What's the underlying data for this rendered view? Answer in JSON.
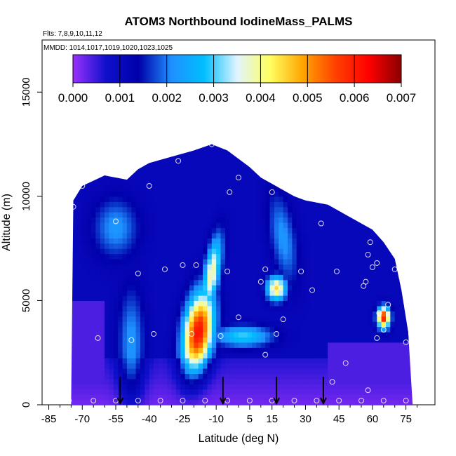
{
  "chart_data": {
    "type": "heatmap",
    "title": "ATOM3 Northbound IodineMass_PALMS",
    "flights_note": "Flts: 7,8,9,10,11,12",
    "dates_note": "MMDD: 1014,1017,1019,1020,1023,1025",
    "xlabel": "Latitude (deg N)",
    "ylabel": "Altitude (m)",
    "xlim": [
      -88,
      88
    ],
    "ylim": [
      0,
      17500
    ],
    "x_ticks": [
      -85,
      -70,
      -55,
      -40,
      -25,
      -10,
      5,
      15,
      30,
      45,
      60,
      75
    ],
    "x_tick_labels": [
      "-85",
      "-70",
      "-55",
      "-40",
      "-25",
      "-10",
      "5",
      "15",
      "30",
      "45",
      "60",
      "75"
    ],
    "y_ticks": [
      0,
      5000,
      10000,
      15000
    ],
    "y_tick_labels": [
      "0",
      "5000",
      "10000",
      "15000"
    ],
    "colorbar": {
      "min": 0.0,
      "max": 0.007,
      "ticks": [
        "0.000",
        "0.001",
        "0.002",
        "0.003",
        "0.004",
        "0.005",
        "0.006",
        "0.007"
      ],
      "colors": [
        "#9b30ff",
        "#1010cc",
        "#0000aa",
        "#1e90ff",
        "#00bfff",
        "#e0f4ff",
        "#ffff60",
        "#ffa500",
        "#ff4000",
        "#ff0000",
        "#8b0000"
      ]
    },
    "outline_top_altitude_by_latitude": [
      [
        -75,
        0
      ],
      [
        -74,
        9800
      ],
      [
        -70,
        10500
      ],
      [
        -60,
        11000
      ],
      [
        -50,
        10800
      ],
      [
        -45,
        11300
      ],
      [
        -40,
        11600
      ],
      [
        -30,
        11900
      ],
      [
        -20,
        12200
      ],
      [
        -12,
        12500
      ],
      [
        -5,
        12200
      ],
      [
        0,
        11800
      ],
      [
        5,
        11400
      ],
      [
        10,
        10900
      ],
      [
        15,
        10600
      ],
      [
        20,
        10300
      ],
      [
        25,
        10000
      ],
      [
        30,
        9800
      ],
      [
        40,
        9600
      ],
      [
        50,
        9000
      ],
      [
        55,
        8700
      ],
      [
        60,
        8400
      ],
      [
        65,
        7800
      ],
      [
        70,
        7000
      ],
      [
        73,
        5500
      ],
      [
        76,
        3500
      ],
      [
        78,
        0
      ]
    ],
    "features": [
      {
        "name": "tropical-plume",
        "lat_center": -18,
        "alt_center": 3500,
        "value": 0.0062
      },
      {
        "name": "plume-upper-tongue",
        "lat_center": -12,
        "alt_center": 6300,
        "value": 0.004
      },
      {
        "name": "subtropical-south-band",
        "lat_center": -48,
        "alt_center": 3000,
        "value": 0.0022
      },
      {
        "name": "south-upper-band",
        "lat_center": -55,
        "alt_center": 8500,
        "value": 0.0022
      },
      {
        "name": "nh-midlat-patch",
        "lat_center": 17,
        "alt_center": 5600,
        "value": 0.0045
      },
      {
        "name": "nh-upper-band",
        "lat_center": 20,
        "alt_center": 8000,
        "value": 0.0022
      },
      {
        "name": "arctic-hotspot",
        "lat_center": 65,
        "alt_center": 4200,
        "value": 0.006
      },
      {
        "name": "mid-pacific-band",
        "lat_center": 2,
        "alt_center": 3300,
        "value": 0.003
      }
    ],
    "sample_points": [
      [
        -76,
        200
      ],
      [
        -65,
        200
      ],
      [
        -55,
        200
      ],
      [
        -45,
        200
      ],
      [
        -35,
        200
      ],
      [
        -25,
        200
      ],
      [
        -15,
        200
      ],
      [
        -5,
        200
      ],
      [
        5,
        200
      ],
      [
        15,
        200
      ],
      [
        25,
        200
      ],
      [
        35,
        200
      ],
      [
        45,
        200
      ],
      [
        55,
        200
      ],
      [
        65,
        200
      ],
      [
        75,
        200
      ],
      [
        -77,
        3400
      ],
      [
        -63,
        3200
      ],
      [
        -48,
        3100
      ],
      [
        -38,
        3400
      ],
      [
        -21,
        3400
      ],
      [
        -8,
        3300
      ],
      [
        0,
        4200
      ],
      [
        12,
        2400
      ],
      [
        17,
        3400
      ],
      [
        20,
        4100
      ],
      [
        33,
        5500
      ],
      [
        42,
        1100
      ],
      [
        48,
        2000
      ],
      [
        58,
        700
      ],
      [
        62,
        3200
      ],
      [
        65,
        3600
      ],
      [
        67,
        4800
      ],
      [
        63,
        4400
      ],
      [
        75,
        3000
      ],
      [
        -74,
        9500
      ],
      [
        -70,
        10500
      ],
      [
        -55,
        8800
      ],
      [
        -45,
        6300
      ],
      [
        -40,
        10500
      ],
      [
        -33,
        6500
      ],
      [
        -27,
        11700
      ],
      [
        -25,
        6700
      ],
      [
        -19,
        6700
      ],
      [
        -12,
        12500
      ],
      [
        -5,
        6400
      ],
      [
        -4,
        10200
      ],
      [
        0,
        10900
      ],
      [
        10,
        5900
      ],
      [
        12,
        6500
      ],
      [
        15,
        10200
      ],
      [
        17,
        5600
      ],
      [
        28,
        6400
      ],
      [
        37,
        8700
      ],
      [
        44,
        6400
      ],
      [
        56,
        5700
      ],
      [
        57,
        5900
      ],
      [
        58,
        7200
      ],
      [
        59,
        7800
      ],
      [
        60,
        6600
      ],
      [
        62,
        6800
      ],
      [
        66,
        8300
      ],
      [
        70,
        6500
      ]
    ],
    "arrow_markers_lat": [
      -53,
      -7,
      17,
      38
    ]
  }
}
